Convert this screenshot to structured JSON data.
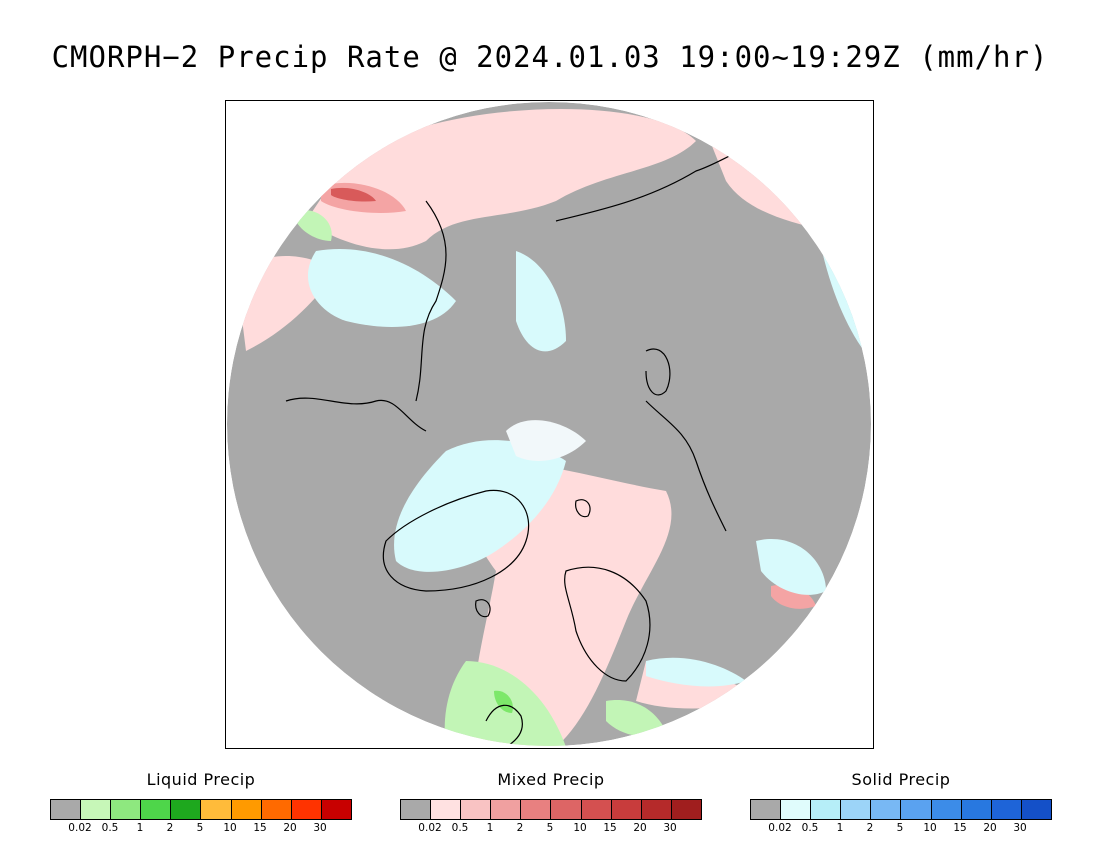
{
  "title": "CMORPH−2 Precip Rate @ 2024.01.03 19:00~19:29Z (mm/hr)",
  "map": {
    "projection": "north-polar-stereographic",
    "colors": {
      "no_precip": "#a9a9a9",
      "frame": "#000000",
      "coast": "#000000",
      "light_pink": "#ffdcdc",
      "pink": "#f4a4a4",
      "red_mixed": "#d85a5a",
      "light_cyan": "#d8fafc",
      "light_green": "#c2f5b6",
      "green": "#7de86a",
      "white_snow": "#f2f8fa"
    }
  },
  "legends": [
    {
      "id": "liquid",
      "title": "Liquid Precip",
      "colors": [
        "#a9a9a9",
        "#c7f7b8",
        "#8ee87f",
        "#4ed64a",
        "#1ea81e",
        "#ffbb3a",
        "#ff9a00",
        "#ff6a00",
        "#ff3300",
        "#c80000"
      ],
      "labels": [
        "0.02",
        "0.5",
        "1",
        "2",
        "5",
        "10",
        "15",
        "20",
        "30"
      ]
    },
    {
      "id": "mixed",
      "title": "Mixed Precip",
      "colors": [
        "#a9a9a9",
        "#ffe1e1",
        "#f9c3c3",
        "#f0a0a0",
        "#e88080",
        "#dd6565",
        "#d45050",
        "#c83c3c",
        "#b52a2a",
        "#a01e1e"
      ],
      "labels": [
        "0.02",
        "0.5",
        "1",
        "2",
        "5",
        "10",
        "15",
        "20",
        "30"
      ]
    },
    {
      "id": "solid",
      "title": "Solid Precip",
      "colors": [
        "#a9a9a9",
        "#e0fcfc",
        "#b6eef8",
        "#9cd4f8",
        "#78b8f4",
        "#5aa2f0",
        "#3c8ce8",
        "#2878e0",
        "#1e64d8",
        "#1450c8"
      ],
      "labels": [
        "0.02",
        "0.5",
        "1",
        "2",
        "5",
        "10",
        "15",
        "20",
        "30"
      ]
    }
  ]
}
